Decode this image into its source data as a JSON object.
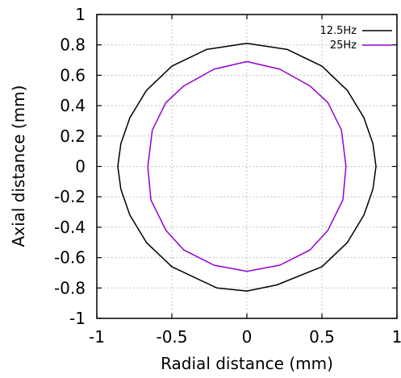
{
  "chart_data": {
    "type": "line",
    "xlabel": "Radial distance (mm)",
    "ylabel": "Axial distance (mm)",
    "xlim": [
      -1,
      1
    ],
    "ylim": [
      -1,
      1
    ],
    "x_ticks": [
      "-1",
      "-0.5",
      "0",
      "0.5",
      "1"
    ],
    "y_ticks": [
      "1",
      "0.8",
      "0.6",
      "0.4",
      "0.2",
      "0",
      "-0.2",
      "-0.4",
      "-0.6",
      "-0.8",
      "-1"
    ],
    "grid": true,
    "legend_position": "top-right",
    "series": [
      {
        "name": "12.5Hz",
        "color": "#000000",
        "x": [
          0,
          0.27,
          0.5,
          0.67,
          0.78,
          0.84,
          0.86,
          0.84,
          0.78,
          0.67,
          0.5,
          0.2,
          0,
          -0.2,
          -0.5,
          -0.67,
          -0.78,
          -0.84,
          -0.86,
          -0.84,
          -0.78,
          -0.67,
          -0.5,
          -0.27,
          0
        ],
        "y": [
          0.81,
          0.77,
          0.66,
          0.5,
          0.32,
          0.15,
          0,
          -0.15,
          -0.32,
          -0.5,
          -0.66,
          -0.78,
          -0.82,
          -0.8,
          -0.66,
          -0.5,
          -0.32,
          -0.15,
          0,
          0.15,
          0.32,
          0.5,
          0.66,
          0.77,
          0.81
        ]
      },
      {
        "name": "25Hz",
        "color": "#9400d3",
        "x": [
          0,
          0.22,
          0.42,
          0.54,
          0.63,
          0.66,
          0.64,
          0.54,
          0.42,
          0.22,
          0,
          -0.22,
          -0.42,
          -0.54,
          -0.64,
          -0.66,
          -0.63,
          -0.54,
          -0.42,
          -0.22,
          0
        ],
        "y": [
          0.69,
          0.64,
          0.53,
          0.42,
          0.24,
          0,
          -0.22,
          -0.42,
          -0.55,
          -0.65,
          -0.69,
          -0.65,
          -0.55,
          -0.42,
          -0.22,
          0,
          0.24,
          0.42,
          0.53,
          0.64,
          0.69
        ]
      }
    ]
  }
}
